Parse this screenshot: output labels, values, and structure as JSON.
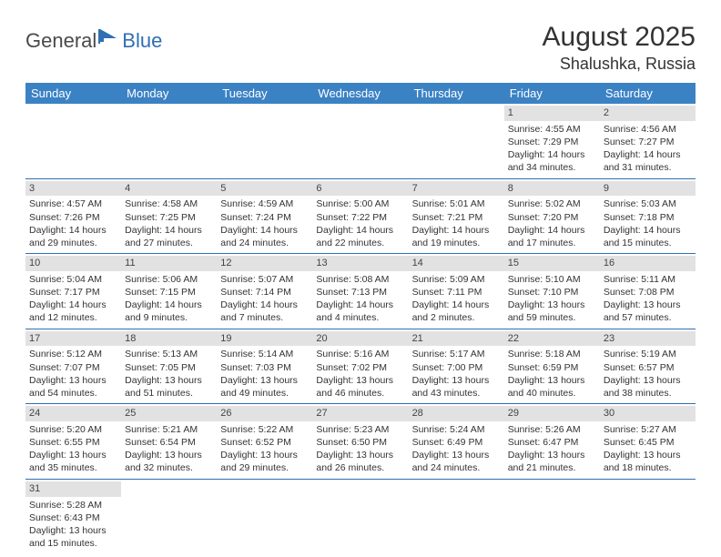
{
  "logo": {
    "part1": "General",
    "part2": "Blue"
  },
  "title": "August 2025",
  "location": "Shalushka, Russia",
  "header_bg": "#3b82c4",
  "rule_color": "#2f6fb3",
  "daynum_bg": "#e2e2e2",
  "weekdays": [
    "Sunday",
    "Monday",
    "Tuesday",
    "Wednesday",
    "Thursday",
    "Friday",
    "Saturday"
  ],
  "grid": [
    [
      null,
      null,
      null,
      null,
      null,
      {
        "n": "1",
        "sr": "Sunrise: 4:55 AM",
        "ss": "Sunset: 7:29 PM",
        "d1": "Daylight: 14 hours",
        "d2": "and 34 minutes."
      },
      {
        "n": "2",
        "sr": "Sunrise: 4:56 AM",
        "ss": "Sunset: 7:27 PM",
        "d1": "Daylight: 14 hours",
        "d2": "and 31 minutes."
      }
    ],
    [
      {
        "n": "3",
        "sr": "Sunrise: 4:57 AM",
        "ss": "Sunset: 7:26 PM",
        "d1": "Daylight: 14 hours",
        "d2": "and 29 minutes."
      },
      {
        "n": "4",
        "sr": "Sunrise: 4:58 AM",
        "ss": "Sunset: 7:25 PM",
        "d1": "Daylight: 14 hours",
        "d2": "and 27 minutes."
      },
      {
        "n": "5",
        "sr": "Sunrise: 4:59 AM",
        "ss": "Sunset: 7:24 PM",
        "d1": "Daylight: 14 hours",
        "d2": "and 24 minutes."
      },
      {
        "n": "6",
        "sr": "Sunrise: 5:00 AM",
        "ss": "Sunset: 7:22 PM",
        "d1": "Daylight: 14 hours",
        "d2": "and 22 minutes."
      },
      {
        "n": "7",
        "sr": "Sunrise: 5:01 AM",
        "ss": "Sunset: 7:21 PM",
        "d1": "Daylight: 14 hours",
        "d2": "and 19 minutes."
      },
      {
        "n": "8",
        "sr": "Sunrise: 5:02 AM",
        "ss": "Sunset: 7:20 PM",
        "d1": "Daylight: 14 hours",
        "d2": "and 17 minutes."
      },
      {
        "n": "9",
        "sr": "Sunrise: 5:03 AM",
        "ss": "Sunset: 7:18 PM",
        "d1": "Daylight: 14 hours",
        "d2": "and 15 minutes."
      }
    ],
    [
      {
        "n": "10",
        "sr": "Sunrise: 5:04 AM",
        "ss": "Sunset: 7:17 PM",
        "d1": "Daylight: 14 hours",
        "d2": "and 12 minutes."
      },
      {
        "n": "11",
        "sr": "Sunrise: 5:06 AM",
        "ss": "Sunset: 7:15 PM",
        "d1": "Daylight: 14 hours",
        "d2": "and 9 minutes."
      },
      {
        "n": "12",
        "sr": "Sunrise: 5:07 AM",
        "ss": "Sunset: 7:14 PM",
        "d1": "Daylight: 14 hours",
        "d2": "and 7 minutes."
      },
      {
        "n": "13",
        "sr": "Sunrise: 5:08 AM",
        "ss": "Sunset: 7:13 PM",
        "d1": "Daylight: 14 hours",
        "d2": "and 4 minutes."
      },
      {
        "n": "14",
        "sr": "Sunrise: 5:09 AM",
        "ss": "Sunset: 7:11 PM",
        "d1": "Daylight: 14 hours",
        "d2": "and 2 minutes."
      },
      {
        "n": "15",
        "sr": "Sunrise: 5:10 AM",
        "ss": "Sunset: 7:10 PM",
        "d1": "Daylight: 13 hours",
        "d2": "and 59 minutes."
      },
      {
        "n": "16",
        "sr": "Sunrise: 5:11 AM",
        "ss": "Sunset: 7:08 PM",
        "d1": "Daylight: 13 hours",
        "d2": "and 57 minutes."
      }
    ],
    [
      {
        "n": "17",
        "sr": "Sunrise: 5:12 AM",
        "ss": "Sunset: 7:07 PM",
        "d1": "Daylight: 13 hours",
        "d2": "and 54 minutes."
      },
      {
        "n": "18",
        "sr": "Sunrise: 5:13 AM",
        "ss": "Sunset: 7:05 PM",
        "d1": "Daylight: 13 hours",
        "d2": "and 51 minutes."
      },
      {
        "n": "19",
        "sr": "Sunrise: 5:14 AM",
        "ss": "Sunset: 7:03 PM",
        "d1": "Daylight: 13 hours",
        "d2": "and 49 minutes."
      },
      {
        "n": "20",
        "sr": "Sunrise: 5:16 AM",
        "ss": "Sunset: 7:02 PM",
        "d1": "Daylight: 13 hours",
        "d2": "and 46 minutes."
      },
      {
        "n": "21",
        "sr": "Sunrise: 5:17 AM",
        "ss": "Sunset: 7:00 PM",
        "d1": "Daylight: 13 hours",
        "d2": "and 43 minutes."
      },
      {
        "n": "22",
        "sr": "Sunrise: 5:18 AM",
        "ss": "Sunset: 6:59 PM",
        "d1": "Daylight: 13 hours",
        "d2": "and 40 minutes."
      },
      {
        "n": "23",
        "sr": "Sunrise: 5:19 AM",
        "ss": "Sunset: 6:57 PM",
        "d1": "Daylight: 13 hours",
        "d2": "and 38 minutes."
      }
    ],
    [
      {
        "n": "24",
        "sr": "Sunrise: 5:20 AM",
        "ss": "Sunset: 6:55 PM",
        "d1": "Daylight: 13 hours",
        "d2": "and 35 minutes."
      },
      {
        "n": "25",
        "sr": "Sunrise: 5:21 AM",
        "ss": "Sunset: 6:54 PM",
        "d1": "Daylight: 13 hours",
        "d2": "and 32 minutes."
      },
      {
        "n": "26",
        "sr": "Sunrise: 5:22 AM",
        "ss": "Sunset: 6:52 PM",
        "d1": "Daylight: 13 hours",
        "d2": "and 29 minutes."
      },
      {
        "n": "27",
        "sr": "Sunrise: 5:23 AM",
        "ss": "Sunset: 6:50 PM",
        "d1": "Daylight: 13 hours",
        "d2": "and 26 minutes."
      },
      {
        "n": "28",
        "sr": "Sunrise: 5:24 AM",
        "ss": "Sunset: 6:49 PM",
        "d1": "Daylight: 13 hours",
        "d2": "and 24 minutes."
      },
      {
        "n": "29",
        "sr": "Sunrise: 5:26 AM",
        "ss": "Sunset: 6:47 PM",
        "d1": "Daylight: 13 hours",
        "d2": "and 21 minutes."
      },
      {
        "n": "30",
        "sr": "Sunrise: 5:27 AM",
        "ss": "Sunset: 6:45 PM",
        "d1": "Daylight: 13 hours",
        "d2": "and 18 minutes."
      }
    ],
    [
      {
        "n": "31",
        "sr": "Sunrise: 5:28 AM",
        "ss": "Sunset: 6:43 PM",
        "d1": "Daylight: 13 hours",
        "d2": "and 15 minutes."
      },
      null,
      null,
      null,
      null,
      null,
      null
    ]
  ]
}
